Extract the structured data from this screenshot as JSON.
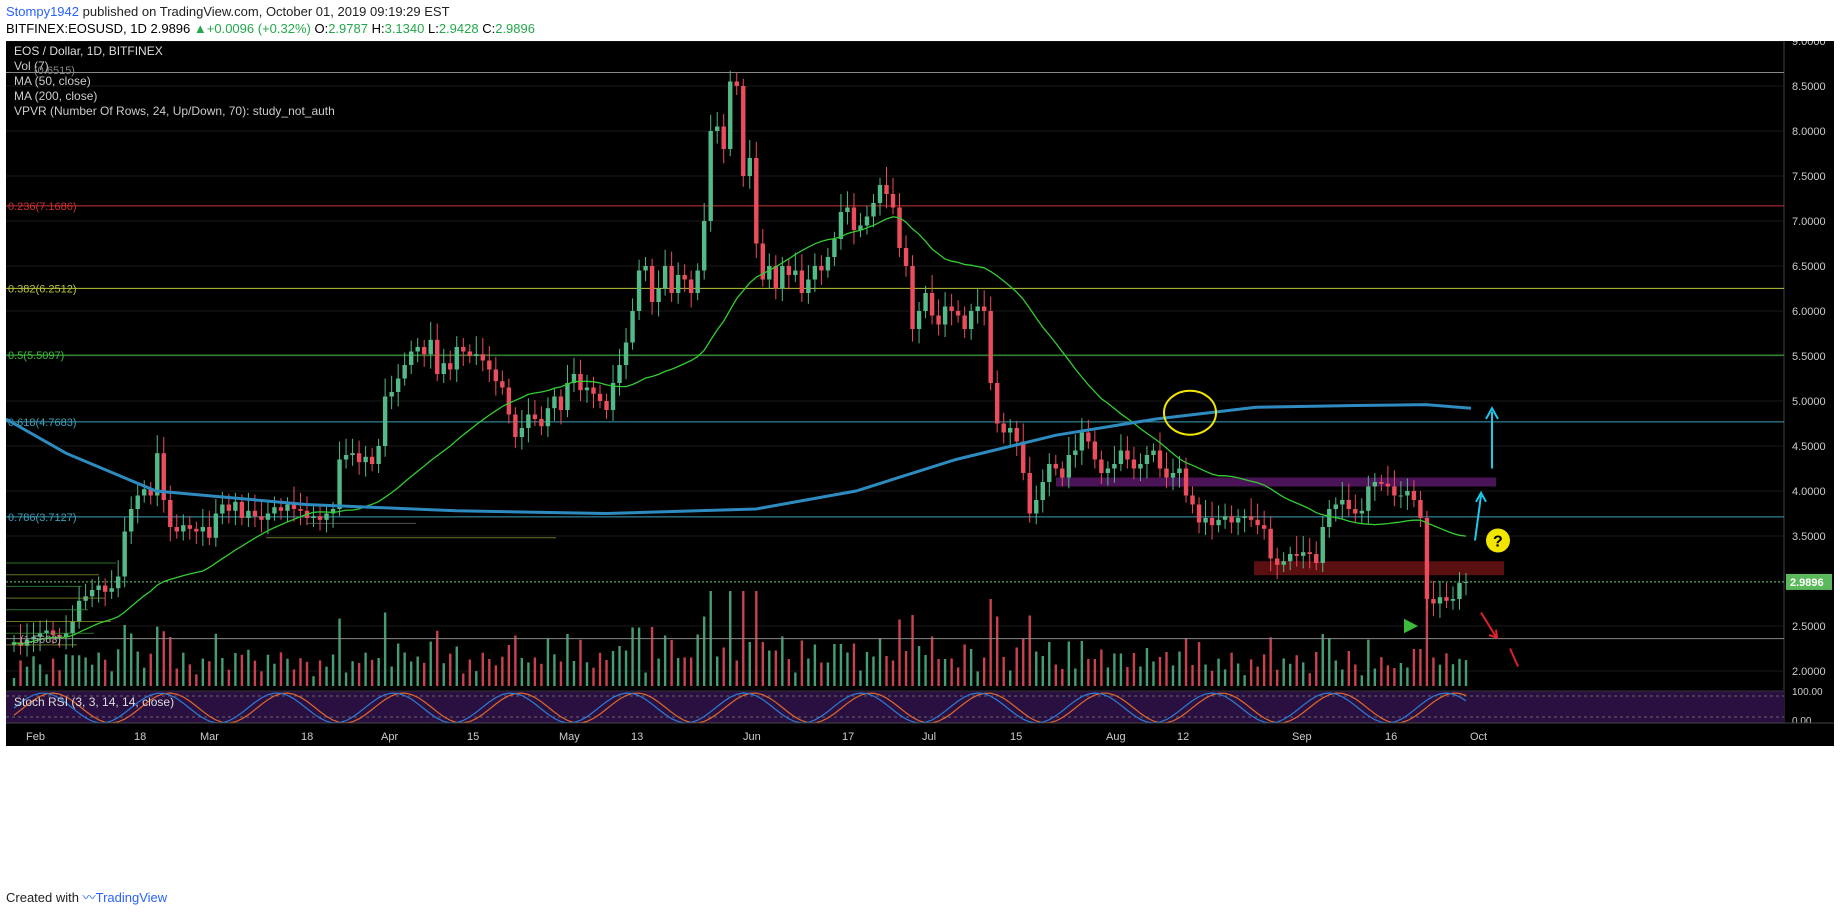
{
  "header": {
    "author": "Stompy1942",
    "published": "published on TradingView.com, October 01, 2019 09:19:29 EST",
    "symbol": "BITFINEX:EOSUSD, 1D",
    "last": "2.9896",
    "change": "+0.0096 (+0.32%)",
    "o_label": "O:",
    "o": "2.9787",
    "h_label": "H:",
    "h": "3.1340",
    "l_label": "L:",
    "l": "2.9428",
    "c_label": "C:",
    "c": "2.9896"
  },
  "legend": {
    "line1": "EOS / Dollar, 1D, BITFINEX",
    "line2": "Vol (7)",
    "line2b": "(0.6515)",
    "line3": "MA (50, close)",
    "line4": "MA (200, close)",
    "line5": "VPVR (Number Of Rows, 24, Up/Down, 70): study_not_auth"
  },
  "stoch_label": "Stoch RSI (3, 3, 14, 14, close)",
  "vol_label": "(1.5663)",
  "footer": {
    "created": "Created with",
    "brand": "TradingView"
  },
  "colors": {
    "bg": "#000000",
    "up": "#53b987",
    "down": "#eb4d5c",
    "ma50": "#33cc33",
    "ma200": "#2e8bc0",
    "fib_red": "#cc3333",
    "fib_yellow": "#b9c43a",
    "fib_green": "#3dbb3d",
    "fib_blue": "#3d9fb9",
    "priceline": "#6fcf6f",
    "stoch_bg": "#2a1040",
    "stoch_k": "#2e7bd6",
    "stoch_d": "#e0682a",
    "resist_zone": "#4a1456",
    "support_zone": "#5a1010"
  },
  "chart_data": {
    "type": "candlestick",
    "title": "EOS / Dollar, 1D, BITFINEX",
    "y_axis_ticks": [
      "9.0000",
      "8.5000",
      "8.0000",
      "7.5000",
      "7.0000",
      "6.5000",
      "6.0000",
      "5.5000",
      "5.0000",
      "4.5000",
      "4.0000",
      "3.5000",
      "2.5000",
      "2.0000"
    ],
    "last_price_label": "2.9896",
    "x_axis_labels": [
      "Feb",
      "18",
      "Mar",
      "18",
      "Apr",
      "15",
      "May",
      "13",
      "Jun",
      "17",
      "Jul",
      "15",
      "Aug",
      "12",
      "Sep",
      "16",
      "Oct"
    ],
    "stoch_ticks": [
      "100.00",
      "0.00"
    ],
    "fib_levels": [
      {
        "label": "0.236(7.1686)",
        "price": 7.1686,
        "color": "#cc3333"
      },
      {
        "label": "0.382(6.2512)",
        "price": 6.2512,
        "color": "#b9c43a"
      },
      {
        "label": "0.5(5.5097)",
        "price": 5.5097,
        "color": "#3dbb3d"
      },
      {
        "label": "0.618(4.7683)",
        "price": 4.7683,
        "color": "#3d9fb9"
      },
      {
        "label": "0.786(3.7127)",
        "price": 3.7127,
        "color": "#3d9fb9"
      }
    ],
    "top_level": 8.65,
    "bottom_level": 2.36,
    "last_price": 2.9896,
    "closes": [
      2.32,
      2.28,
      2.35,
      2.38,
      2.42,
      2.45,
      2.4,
      2.38,
      2.42,
      2.55,
      2.78,
      2.83,
      2.9,
      2.95,
      2.88,
      2.92,
      3.05,
      3.55,
      3.8,
      3.95,
      4.02,
      3.95,
      4.42,
      3.9,
      3.6,
      3.55,
      3.62,
      3.58,
      3.55,
      3.6,
      3.48,
      3.75,
      3.85,
      3.78,
      3.88,
      3.7,
      3.78,
      3.72,
      3.68,
      3.75,
      3.82,
      3.78,
      3.85,
      3.8,
      3.78,
      3.7,
      3.72,
      3.68,
      3.75,
      3.8,
      4.35,
      4.4,
      4.42,
      4.32,
      4.38,
      4.3,
      4.5,
      5.05,
      5.1,
      5.25,
      5.4,
      5.55,
      5.6,
      5.52,
      5.68,
      5.3,
      5.42,
      5.35,
      5.6,
      5.55,
      5.5,
      5.52,
      5.45,
      5.35,
      5.22,
      5.15,
      4.85,
      4.6,
      4.7,
      4.85,
      4.8,
      4.72,
      4.92,
      5.05,
      4.9,
      5.2,
      5.3,
      5.12,
      5.15,
      5.08,
      5.0,
      4.9,
      5.2,
      5.4,
      5.65,
      6.0,
      6.45,
      6.5,
      6.1,
      6.25,
      6.5,
      6.2,
      6.4,
      6.35,
      6.2,
      6.45,
      7.0,
      8.0,
      8.05,
      7.8,
      8.55,
      8.5,
      7.5,
      7.7,
      6.75,
      6.35,
      6.5,
      6.25,
      6.5,
      6.4,
      6.45,
      6.2,
      6.35,
      6.5,
      6.45,
      6.6,
      6.8,
      7.1,
      7.15,
      6.9,
      6.95,
      7.05,
      7.2,
      7.4,
      7.3,
      7.15,
      6.7,
      6.5,
      5.8,
      6.0,
      6.2,
      5.95,
      5.85,
      6.05,
      6.0,
      5.95,
      5.8,
      6.0,
      6.05,
      6.0,
      5.2,
      4.75,
      4.65,
      4.7,
      4.55,
      4.2,
      3.75,
      3.9,
      4.1,
      4.3,
      4.25,
      4.15,
      4.4,
      4.45,
      4.65,
      4.55,
      4.35,
      4.2,
      4.25,
      4.3,
      4.45,
      4.35,
      4.25,
      4.3,
      4.4,
      4.45,
      4.25,
      4.15,
      4.2,
      4.25,
      3.95,
      3.85,
      3.65,
      3.7,
      3.62,
      3.68,
      3.72,
      3.65,
      3.7,
      3.72,
      3.68,
      3.62,
      3.58,
      3.25,
      3.18,
      3.22,
      3.3,
      3.28,
      3.32,
      3.3,
      3.2,
      3.6,
      3.8,
      3.85,
      3.9,
      3.8,
      3.75,
      3.78,
      4.05,
      4.1,
      4.08,
      4.05,
      3.95,
      3.95,
      4.0,
      3.9,
      3.7,
      2.8,
      2.75,
      2.82,
      2.78,
      2.8,
      2.98,
      2.99
    ]
  }
}
